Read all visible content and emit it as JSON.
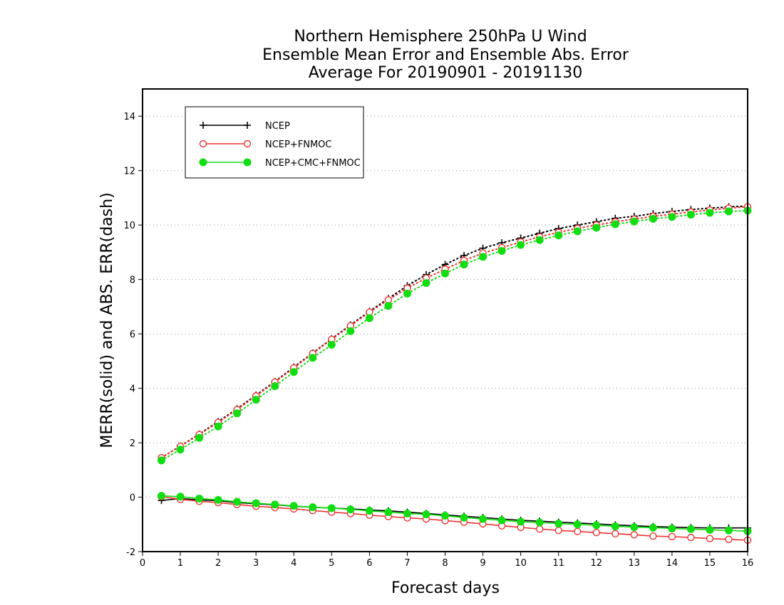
{
  "chart_data": {
    "type": "line",
    "title": [
      "Northern Hemisphere 250hPa U Wind",
      "Ensemble Mean Error and Ensemble Abs. Error",
      "Average For 20190901 - 20191130"
    ],
    "xlabel": "Forecast days",
    "ylabel": "MERR(solid) and ABS. ERR(dash)",
    "xlim": [
      0,
      16
    ],
    "ylim": [
      -2,
      15
    ],
    "xticks": [
      "0",
      "1",
      "2",
      "3",
      "4",
      "5",
      "6",
      "7",
      "8",
      "9",
      "10",
      "11",
      "12",
      "13",
      "14",
      "15",
      "16"
    ],
    "yticks": [
      "-2",
      "0",
      "2",
      "4",
      "6",
      "8",
      "10",
      "12",
      "14"
    ],
    "grid": "horizontal dotted",
    "legend_position": "top-left",
    "x": [
      0.5,
      1,
      1.5,
      2,
      2.5,
      3,
      3.5,
      4,
      4.5,
      5,
      5.5,
      6,
      6.5,
      7,
      7.5,
      8,
      8.5,
      9,
      9.5,
      10,
      10.5,
      11,
      11.5,
      12,
      12.5,
      13,
      13.5,
      14,
      14.5,
      15,
      15.5,
      16
    ],
    "series": [
      {
        "name": "NCEP",
        "color": "#000000",
        "marker": "plus",
        "merr": [
          -0.12,
          -0.05,
          -0.1,
          -0.13,
          -0.2,
          -0.24,
          -0.28,
          -0.33,
          -0.37,
          -0.4,
          -0.43,
          -0.47,
          -0.5,
          -0.55,
          -0.6,
          -0.65,
          -0.7,
          -0.75,
          -0.8,
          -0.85,
          -0.88,
          -0.92,
          -0.95,
          -0.98,
          -1.02,
          -1.05,
          -1.08,
          -1.1,
          -1.12,
          -1.13,
          -1.13,
          -1.13
        ],
        "abs_err": [
          1.45,
          1.88,
          2.32,
          2.78,
          3.25,
          3.75,
          4.25,
          4.78,
          5.3,
          5.82,
          6.33,
          6.83,
          7.3,
          7.77,
          8.18,
          8.55,
          8.88,
          9.15,
          9.35,
          9.52,
          9.7,
          9.87,
          10.0,
          10.12,
          10.25,
          10.32,
          10.42,
          10.5,
          10.57,
          10.62,
          10.67,
          10.7
        ]
      },
      {
        "name": "NCEP+FNMOC",
        "color": "#ee3333",
        "marker": "open-circle",
        "merr": [
          0.02,
          -0.08,
          -0.15,
          -0.2,
          -0.27,
          -0.33,
          -0.38,
          -0.43,
          -0.49,
          -0.55,
          -0.6,
          -0.66,
          -0.71,
          -0.76,
          -0.8,
          -0.86,
          -0.92,
          -0.98,
          -1.05,
          -1.11,
          -1.17,
          -1.22,
          -1.26,
          -1.3,
          -1.34,
          -1.38,
          -1.43,
          -1.45,
          -1.48,
          -1.52,
          -1.55,
          -1.58
        ],
        "abs_err": [
          1.45,
          1.87,
          2.3,
          2.75,
          3.22,
          3.72,
          4.23,
          4.75,
          5.28,
          5.8,
          6.3,
          6.8,
          7.25,
          7.68,
          8.05,
          8.38,
          8.7,
          8.97,
          9.17,
          9.38,
          9.57,
          9.73,
          9.88,
          10.0,
          10.12,
          10.22,
          10.32,
          10.4,
          10.48,
          10.55,
          10.62,
          10.67
        ]
      },
      {
        "name": "NCEP+CMC+FNMOC",
        "color": "#11dd11",
        "marker": "filled-circle",
        "merr": [
          0.05,
          0.02,
          -0.05,
          -0.1,
          -0.17,
          -0.22,
          -0.27,
          -0.32,
          -0.37,
          -0.4,
          -0.45,
          -0.5,
          -0.55,
          -0.6,
          -0.63,
          -0.68,
          -0.75,
          -0.8,
          -0.85,
          -0.9,
          -0.93,
          -0.97,
          -1.0,
          -1.03,
          -1.07,
          -1.1,
          -1.12,
          -1.15,
          -1.17,
          -1.2,
          -1.22,
          -1.25
        ],
        "abs_err": [
          1.35,
          1.75,
          2.18,
          2.6,
          3.08,
          3.58,
          4.08,
          4.6,
          5.12,
          5.6,
          6.1,
          6.58,
          7.03,
          7.48,
          7.87,
          8.22,
          8.55,
          8.83,
          9.05,
          9.27,
          9.45,
          9.62,
          9.77,
          9.9,
          10.03,
          10.13,
          10.23,
          10.3,
          10.38,
          10.45,
          10.5,
          10.53
        ]
      }
    ]
  }
}
